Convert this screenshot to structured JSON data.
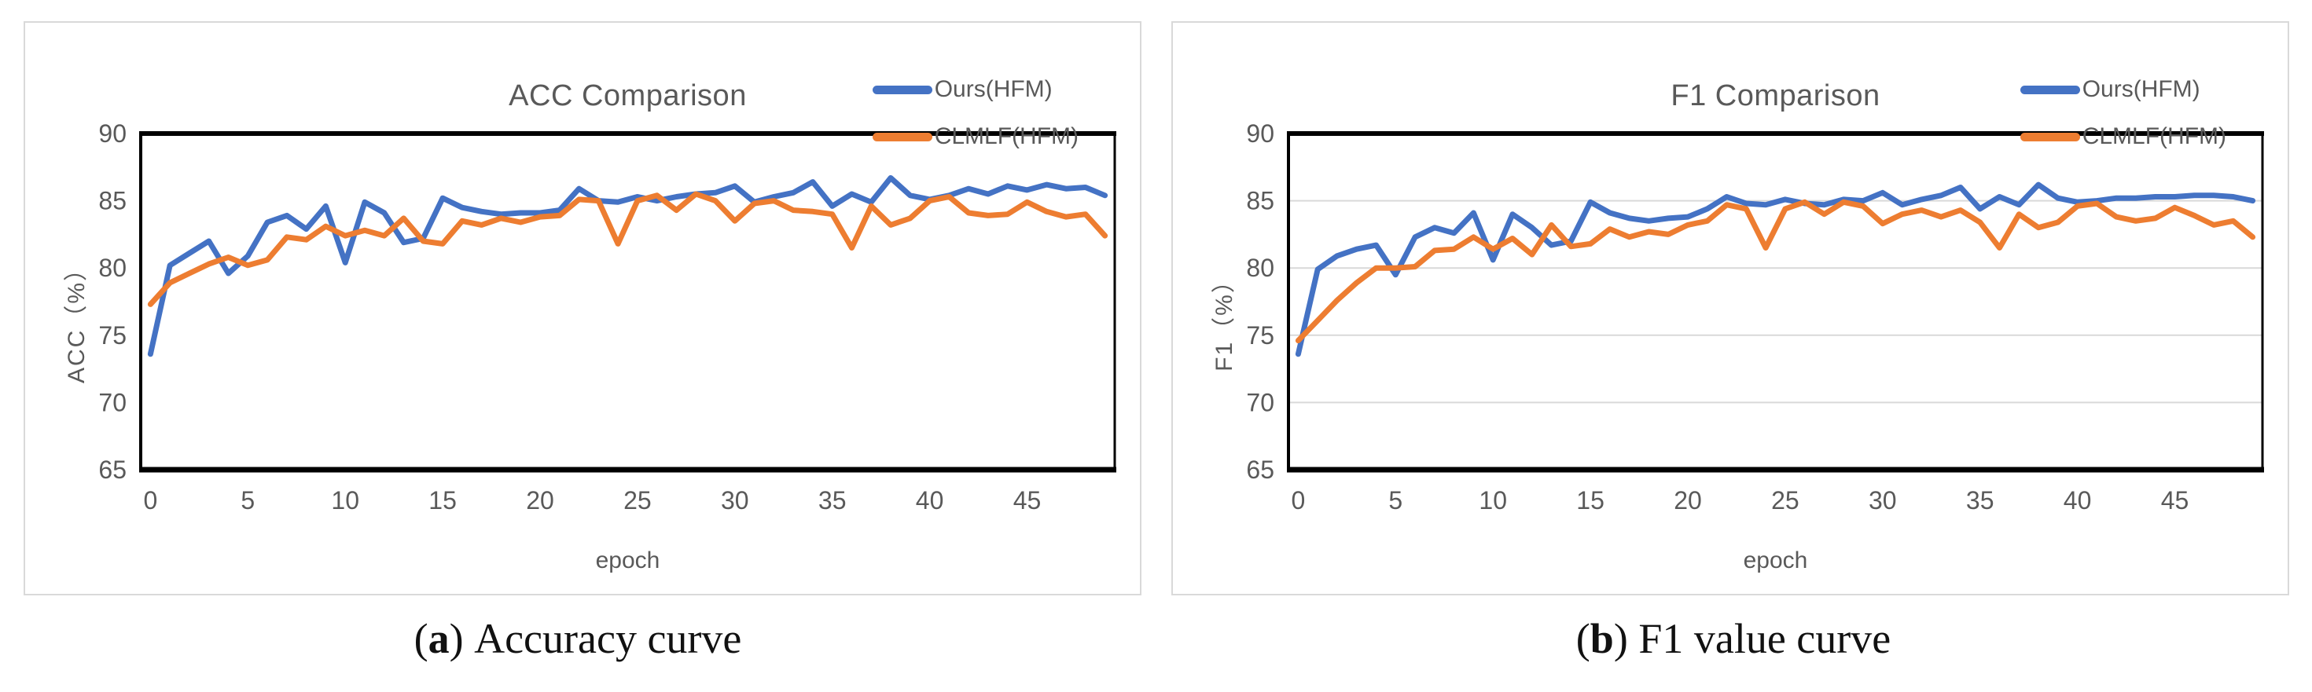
{
  "figure_captions": {
    "a": {
      "label": "a",
      "text": "Accuracy curve"
    },
    "b": {
      "label": "b",
      "text": "F1 value curve"
    }
  },
  "colors": {
    "ours_line": "#4472C4",
    "clmlf_line": "#ED7D31",
    "axis_text": "#595959",
    "gridline": "#D9D9D9",
    "plot_border": "#000000",
    "panel_border": "#D9D9D9"
  },
  "chart_data": [
    {
      "type": "line",
      "title": "ACC Comparison",
      "xlabel": "epoch",
      "ylabel": "ACC（%）",
      "ylim": [
        65,
        90
      ],
      "yticks": [
        65,
        70,
        75,
        80,
        85,
        90
      ],
      "xticks": [
        0,
        5,
        10,
        15,
        20,
        25,
        30,
        35,
        40,
        45
      ],
      "gridlines": false,
      "legend_position": "top-right",
      "x": [
        0,
        1,
        2,
        3,
        4,
        5,
        6,
        7,
        8,
        9,
        10,
        11,
        12,
        13,
        14,
        15,
        16,
        17,
        18,
        19,
        20,
        21,
        22,
        23,
        24,
        25,
        26,
        27,
        28,
        29,
        30,
        31,
        32,
        33,
        34,
        35,
        36,
        37,
        38,
        39,
        40,
        41,
        42,
        43,
        44,
        45,
        46,
        47,
        48,
        49
      ],
      "series": [
        {
          "name": "Ours(HFM)",
          "color": "#4472C4",
          "values": [
            73.6,
            80.2,
            81.1,
            82.0,
            79.6,
            80.9,
            83.4,
            83.9,
            82.9,
            84.6,
            80.4,
            84.9,
            84.1,
            81.9,
            82.2,
            85.2,
            84.5,
            84.2,
            84.0,
            84.1,
            84.1,
            84.3,
            85.9,
            85.0,
            84.9,
            85.3,
            85.0,
            85.3,
            85.5,
            85.6,
            86.1,
            84.9,
            85.3,
            85.6,
            86.4,
            84.6,
            85.5,
            84.9,
            86.7,
            85.4,
            85.1,
            85.4,
            85.9,
            85.5,
            86.1,
            85.8,
            86.2,
            85.9,
            86.0,
            85.4
          ]
        },
        {
          "name": "CLMLF(HFM)",
          "color": "#ED7D31",
          "values": [
            77.3,
            78.9,
            79.6,
            80.3,
            80.8,
            80.2,
            80.6,
            82.3,
            82.1,
            83.1,
            82.4,
            82.8,
            82.4,
            83.7,
            82.0,
            81.8,
            83.5,
            83.2,
            83.7,
            83.4,
            83.8,
            83.9,
            85.1,
            85.0,
            81.8,
            85.0,
            85.4,
            84.3,
            85.5,
            85.0,
            83.5,
            84.8,
            85.0,
            84.3,
            84.2,
            84.0,
            81.5,
            84.6,
            83.2,
            83.7,
            85.0,
            85.3,
            84.1,
            83.9,
            84.0,
            84.9,
            84.2,
            83.8,
            84.0,
            82.4
          ]
        }
      ]
    },
    {
      "type": "line",
      "title": "F1 Comparison",
      "xlabel": "epoch",
      "ylabel": "F1（%）",
      "ylim": [
        65,
        90
      ],
      "yticks": [
        65,
        70,
        75,
        80,
        85,
        90
      ],
      "xticks": [
        0,
        5,
        10,
        15,
        20,
        25,
        30,
        35,
        40,
        45
      ],
      "gridlines": true,
      "legend_position": "top-right",
      "x": [
        0,
        1,
        2,
        3,
        4,
        5,
        6,
        7,
        8,
        9,
        10,
        11,
        12,
        13,
        14,
        15,
        16,
        17,
        18,
        19,
        20,
        21,
        22,
        23,
        24,
        25,
        26,
        27,
        28,
        29,
        30,
        31,
        32,
        33,
        34,
        35,
        36,
        37,
        38,
        39,
        40,
        41,
        42,
        43,
        44,
        45,
        46,
        47,
        48,
        49
      ],
      "series": [
        {
          "name": "Ours(HFM)",
          "color": "#4472C4",
          "values": [
            73.6,
            79.9,
            80.9,
            81.4,
            81.7,
            79.5,
            82.3,
            83.0,
            82.6,
            84.1,
            80.6,
            84.0,
            83.0,
            81.7,
            82.0,
            84.9,
            84.1,
            83.7,
            83.5,
            83.7,
            83.8,
            84.4,
            85.3,
            84.8,
            84.7,
            85.1,
            84.8,
            84.7,
            85.1,
            85.0,
            85.6,
            84.7,
            85.1,
            85.4,
            86.0,
            84.4,
            85.3,
            84.7,
            86.2,
            85.2,
            84.9,
            85.0,
            85.2,
            85.2,
            85.3,
            85.3,
            85.4,
            85.4,
            85.3,
            85.0
          ]
        },
        {
          "name": "CLMLF(HFM)",
          "color": "#ED7D31",
          "values": [
            74.6,
            76.1,
            77.6,
            78.9,
            80.0,
            80.0,
            80.1,
            81.3,
            81.4,
            82.3,
            81.4,
            82.2,
            81.0,
            83.2,
            81.6,
            81.8,
            82.9,
            82.3,
            82.7,
            82.5,
            83.2,
            83.5,
            84.7,
            84.4,
            81.5,
            84.4,
            84.9,
            84.0,
            84.9,
            84.6,
            83.3,
            84.0,
            84.3,
            83.8,
            84.3,
            83.4,
            81.5,
            84.0,
            83.0,
            83.4,
            84.6,
            84.8,
            83.8,
            83.5,
            83.7,
            84.5,
            83.9,
            83.2,
            83.5,
            82.3
          ]
        }
      ]
    }
  ]
}
